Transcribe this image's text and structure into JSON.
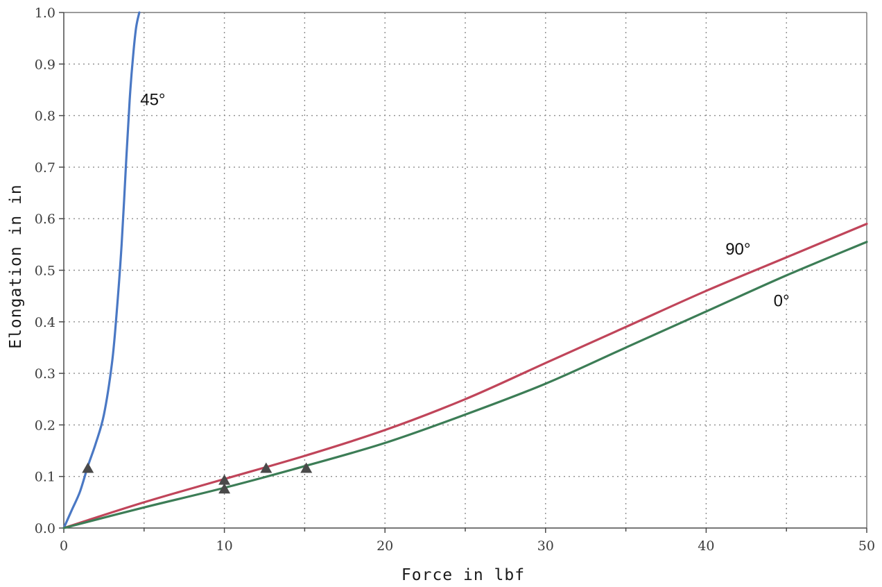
{
  "chart_data": {
    "type": "line",
    "xlabel": "Force in lbf",
    "ylabel": "Elongation in in",
    "xlim": [
      0,
      50
    ],
    "ylim": [
      0,
      1.0
    ],
    "grid": true,
    "xticks": [
      "0",
      "10",
      "20",
      "30",
      "40",
      "50"
    ],
    "yticks": [
      "0.0",
      "0.1",
      "0.2",
      "0.3",
      "0.4",
      "0.5",
      "0.6",
      "0.7",
      "0.8",
      "0.9",
      "1.0"
    ],
    "series": [
      {
        "name": "45°",
        "color": "#4a78c4",
        "x": [
          0,
          0.5,
          1.0,
          1.5,
          2.0,
          2.5,
          3.0,
          3.3,
          3.6,
          3.9,
          4.1,
          4.3,
          4.5,
          4.7
        ],
        "y": [
          0,
          0.035,
          0.07,
          0.12,
          0.165,
          0.22,
          0.32,
          0.42,
          0.55,
          0.72,
          0.83,
          0.91,
          0.97,
          1.0
        ]
      },
      {
        "name": "90°",
        "color": "#c0455a",
        "x": [
          0,
          5,
          10,
          15,
          20,
          25,
          30,
          35,
          40,
          45,
          50
        ],
        "y": [
          0,
          0.05,
          0.095,
          0.14,
          0.19,
          0.25,
          0.32,
          0.39,
          0.46,
          0.525,
          0.59
        ]
      },
      {
        "name": "0°",
        "color": "#3c7d56",
        "x": [
          0,
          5,
          10,
          15,
          20,
          25,
          30,
          35,
          40,
          45,
          50
        ],
        "y": [
          0,
          0.04,
          0.078,
          0.12,
          0.165,
          0.22,
          0.28,
          0.35,
          0.42,
          0.49,
          0.555
        ]
      }
    ],
    "markers": {
      "shape": "triangle",
      "color": "#4a4a4a",
      "points": [
        {
          "x": 1.5,
          "y": 0.115
        },
        {
          "x": 10,
          "y": 0.092
        },
        {
          "x": 10,
          "y": 0.075
        },
        {
          "x": 12.6,
          "y": 0.115
        },
        {
          "x": 15.1,
          "y": 0.115
        }
      ]
    }
  }
}
